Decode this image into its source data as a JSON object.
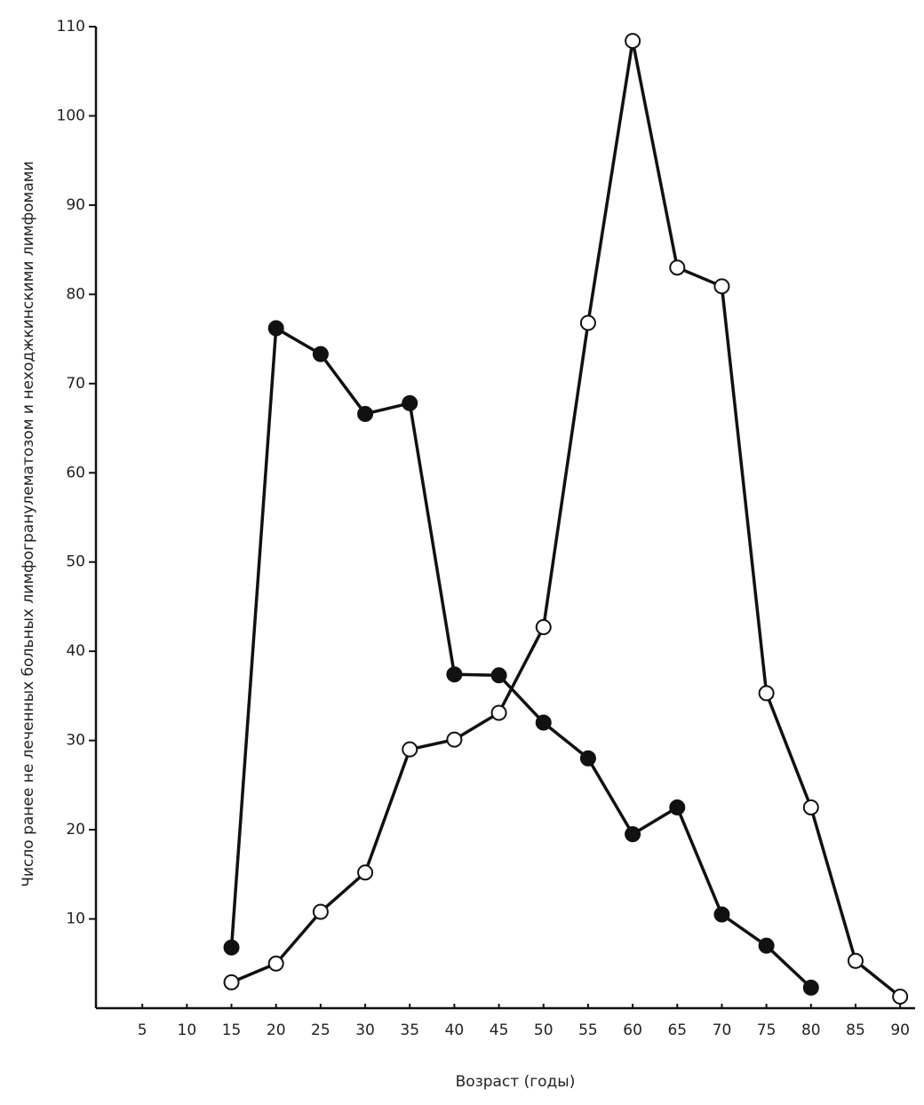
{
  "chart_data": {
    "type": "line",
    "x_label": "Возраст (годы)",
    "y_label": "Число ранее не леченных больных лимфогранулематозом  и неходжкинскими лимфомами",
    "x": [
      15,
      20,
      25,
      30,
      35,
      40,
      45,
      50,
      55,
      60,
      65,
      70,
      75,
      80,
      85,
      90
    ],
    "series": [
      {
        "color": "#111111",
        "marker": "filled",
        "values": [
          6.8,
          76.2,
          73.3,
          66.6,
          67.8,
          37.4,
          37.3,
          32,
          28,
          19.5,
          22.5,
          10.5,
          7,
          2.3,
          null,
          null
        ]
      },
      {
        "color": "#111111",
        "marker": "open",
        "values": [
          2.9,
          5,
          10.8,
          15.2,
          29,
          30.1,
          33.1,
          42.7,
          76.8,
          108.4,
          83,
          80.9,
          35.3,
          22.5,
          5.3,
          1.3
        ]
      }
    ],
    "xlim": [
      0,
      92
    ],
    "ylim": [
      0,
      110
    ],
    "xticks": [
      5,
      10,
      15,
      20,
      25,
      30,
      35,
      40,
      45,
      50,
      55,
      60,
      65,
      70,
      75,
      80,
      85,
      90
    ],
    "yticks": [
      10,
      20,
      30,
      40,
      50,
      60,
      70,
      80,
      90,
      100,
      110
    ],
    "grid": false
  }
}
